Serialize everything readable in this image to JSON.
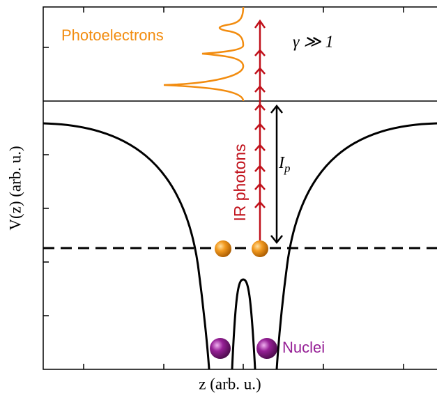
{
  "labels": {
    "photoelectrons": "Photoelectrons",
    "gamma": "γ ≫ 1",
    "ionization": {
      "symbol": "I",
      "subscript": "p"
    },
    "photons": "IR photons",
    "nuclei": "Nuclei"
  },
  "axes": {
    "y_label": "V(z) (arb. u.)",
    "x_label": "z (arb. u.)"
  }
}
